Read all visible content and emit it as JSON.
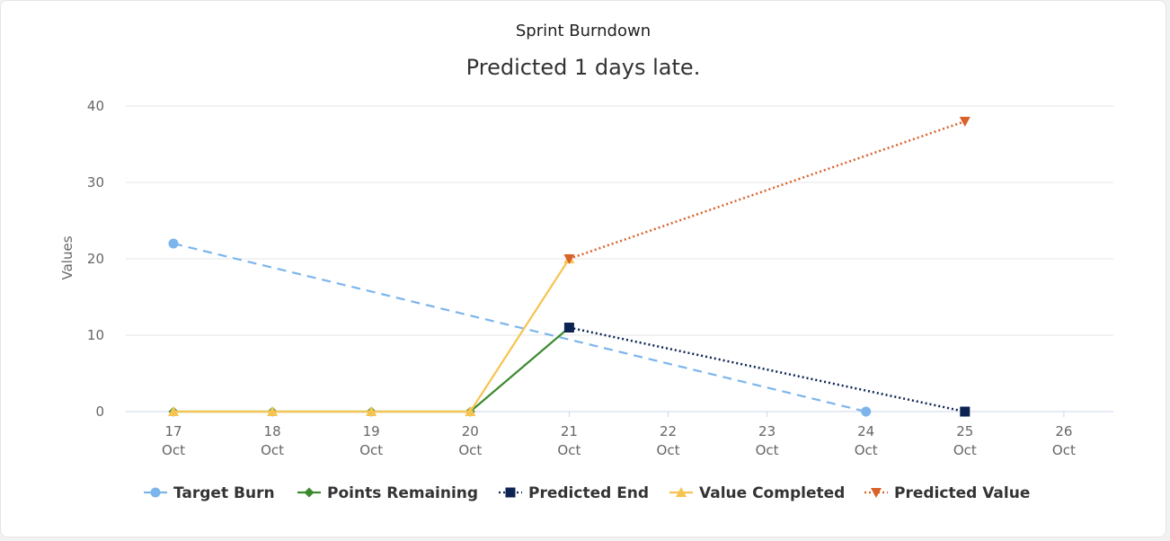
{
  "chart_data": {
    "type": "line",
    "title": "Sprint Burndown",
    "subtitle": "Predicted 1 days late.",
    "ylabel": "Values",
    "xlabel": "",
    "ylim": [
      0,
      40
    ],
    "yticks": [
      "0",
      "10",
      "20",
      "30",
      "40"
    ],
    "categories": [
      "17 Oct",
      "18 Oct",
      "19 Oct",
      "20 Oct",
      "21 Oct",
      "22 Oct",
      "23 Oct",
      "24 Oct",
      "25 Oct",
      "26 Oct"
    ],
    "category_labels": [
      {
        "day": "17",
        "month": "Oct"
      },
      {
        "day": "18",
        "month": "Oct"
      },
      {
        "day": "19",
        "month": "Oct"
      },
      {
        "day": "20",
        "month": "Oct"
      },
      {
        "day": "21",
        "month": "Oct"
      },
      {
        "day": "22",
        "month": "Oct"
      },
      {
        "day": "23",
        "month": "Oct"
      },
      {
        "day": "24",
        "month": "Oct"
      },
      {
        "day": "25",
        "month": "Oct"
      },
      {
        "day": "26",
        "month": "Oct"
      }
    ],
    "grid": true,
    "legend_position": "bottom",
    "series": [
      {
        "name": "Target Burn",
        "color": "#7cb5ec",
        "marker": "circle",
        "dash": "dashed",
        "points": [
          {
            "x": "17 Oct",
            "y": 22
          },
          {
            "x": "24 Oct",
            "y": 0
          }
        ]
      },
      {
        "name": "Points Remaining",
        "color": "#3b8a2e",
        "marker": "diamond",
        "dash": "solid",
        "points": [
          {
            "x": "17 Oct",
            "y": 0
          },
          {
            "x": "18 Oct",
            "y": 0
          },
          {
            "x": "19 Oct",
            "y": 0
          },
          {
            "x": "20 Oct",
            "y": 0
          },
          {
            "x": "21 Oct",
            "y": 11
          }
        ]
      },
      {
        "name": "Predicted End",
        "color": "#0d2352",
        "marker": "square",
        "dash": "dotted",
        "points": [
          {
            "x": "21 Oct",
            "y": 11
          },
          {
            "x": "25 Oct",
            "y": 0
          }
        ]
      },
      {
        "name": "Value Completed",
        "color": "#f7c351",
        "marker": "triangle",
        "dash": "solid",
        "points": [
          {
            "x": "17 Oct",
            "y": 0
          },
          {
            "x": "18 Oct",
            "y": 0
          },
          {
            "x": "19 Oct",
            "y": 0
          },
          {
            "x": "20 Oct",
            "y": 0
          },
          {
            "x": "21 Oct",
            "y": 20
          }
        ]
      },
      {
        "name": "Predicted Value",
        "color": "#d9612a",
        "marker": "triangle-down",
        "dash": "dotted",
        "points": [
          {
            "x": "21 Oct",
            "y": 20
          },
          {
            "x": "25 Oct",
            "y": 38
          }
        ]
      }
    ]
  }
}
